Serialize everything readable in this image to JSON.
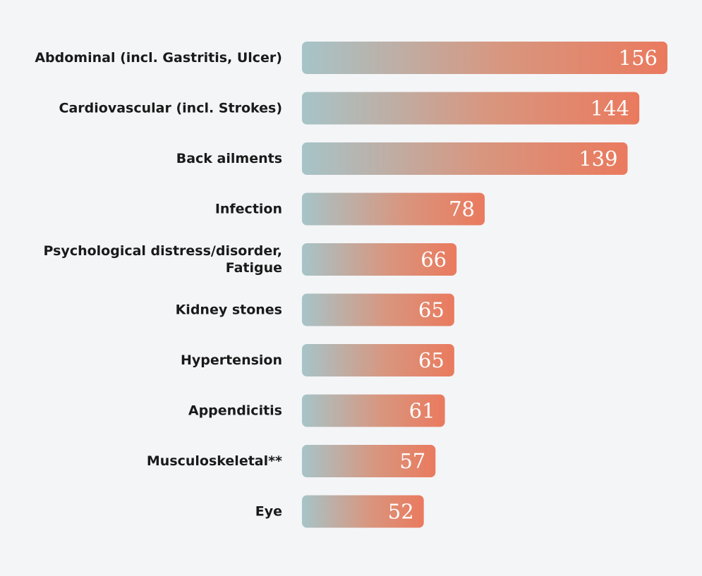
{
  "chart_data": {
    "type": "bar",
    "orientation": "horizontal",
    "categories": [
      [
        "Abdominal (incl. Gastritis, Ulcer)"
      ],
      [
        "Cardiovascular (incl. Strokes)"
      ],
      [
        "Back ailments"
      ],
      [
        "Infection"
      ],
      [
        "Psychological distress/disorder,",
        "Fatigue"
      ],
      [
        "Kidney stones"
      ],
      [
        "Hypertension"
      ],
      [
        "Appendicitis"
      ],
      [
        "Musculoskeletal**"
      ],
      [
        "Eye"
      ]
    ],
    "values": [
      156,
      144,
      139,
      78,
      66,
      65,
      65,
      61,
      57,
      52
    ],
    "value_labels": [
      "156",
      "144",
      "139",
      "78",
      "66",
      "65",
      "65",
      "61",
      "57",
      "52"
    ],
    "title": "",
    "xlabel": "",
    "ylabel": "",
    "grid": false,
    "legend": "none",
    "colors": {
      "background": "#f4f5f7",
      "gradient_start": "#a6c4c8",
      "gradient_end": "#ea7a5e",
      "label_text": "#1a1a1a",
      "value_text": "#ffffff"
    }
  }
}
